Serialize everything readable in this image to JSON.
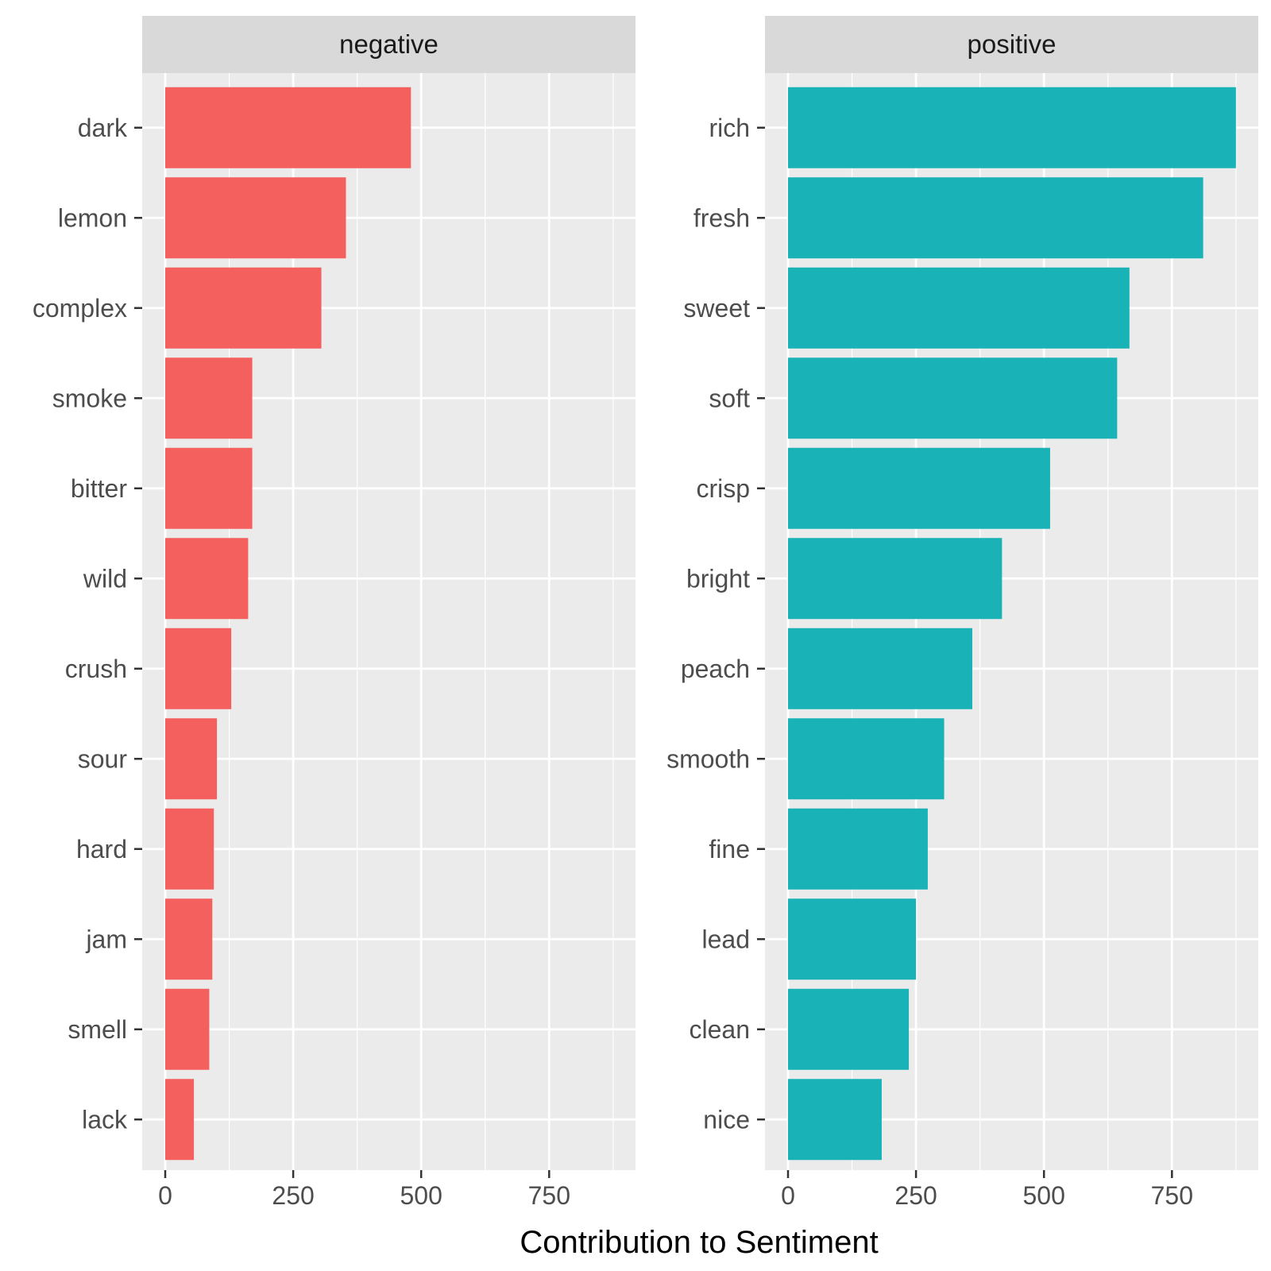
{
  "chart_data": {
    "type": "bar",
    "orientation": "horizontal",
    "xlabel": "Contribution to Sentiment",
    "ylabel": "",
    "xlim": [
      0,
      900
    ],
    "x_ticks": [
      0,
      250,
      500,
      750
    ],
    "grid": true,
    "legend": "none",
    "facets": [
      {
        "name": "negative",
        "color": "#F4605E",
        "categories": [
          "dark",
          "lemon",
          "complex",
          "smoke",
          "bitter",
          "wild",
          "crush",
          "sour",
          "hard",
          "jam",
          "smell",
          "lack"
        ],
        "values": [
          480,
          353,
          305,
          170,
          170,
          162,
          129,
          101,
          95,
          92,
          86,
          56
        ]
      },
      {
        "name": "positive",
        "color": "#19B3B7",
        "categories": [
          "rich",
          "fresh",
          "sweet",
          "soft",
          "crisp",
          "bright",
          "peach",
          "smooth",
          "fine",
          "lead",
          "clean",
          "nice"
        ],
        "values": [
          875,
          811,
          667,
          643,
          512,
          418,
          360,
          305,
          273,
          250,
          236,
          183
        ]
      }
    ]
  }
}
